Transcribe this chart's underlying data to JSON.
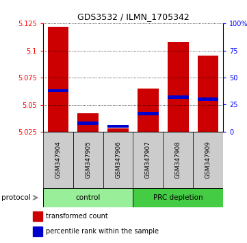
{
  "title": "GDS3532 / ILMN_1705342",
  "categories": [
    "GSM347904",
    "GSM347905",
    "GSM347906",
    "GSM347907",
    "GSM347908",
    "GSM347909"
  ],
  "bar_bottoms": [
    5.025,
    5.025,
    5.025,
    5.025,
    5.025,
    5.025
  ],
  "bar_tops": [
    5.122,
    5.042,
    5.028,
    5.065,
    5.108,
    5.095
  ],
  "blue_positions": [
    5.063,
    5.033,
    5.03,
    5.042,
    5.057,
    5.055
  ],
  "blue_bar_height": 0.003,
  "ylim": [
    5.025,
    5.125
  ],
  "yticks_left": [
    5.025,
    5.05,
    5.075,
    5.1,
    5.125
  ],
  "ytick_labels_left": [
    "5.025",
    "5.05",
    "5.075",
    "5.1",
    "5.125"
  ],
  "yticks_right_pct": [
    0,
    25,
    50,
    75,
    100
  ],
  "ytick_labels_right": [
    "0",
    "25",
    "50",
    "75",
    "100%"
  ],
  "bar_color": "#cc0000",
  "blue_color": "#0000cc",
  "bar_width": 0.7,
  "groups": [
    {
      "label": "control",
      "indices": [
        0,
        1,
        2
      ],
      "color": "#99ee99"
    },
    {
      "label": "PRC depletion",
      "indices": [
        3,
        4,
        5
      ],
      "color": "#44cc44"
    }
  ],
  "protocol_label": "protocol",
  "legend_items": [
    {
      "label": "transformed count",
      "color": "#cc0000"
    },
    {
      "label": "percentile rank within the sample",
      "color": "#0000cc"
    }
  ],
  "sample_box_color": "#cccccc",
  "fig_width": 3.61,
  "fig_height": 3.54,
  "dpi": 100
}
